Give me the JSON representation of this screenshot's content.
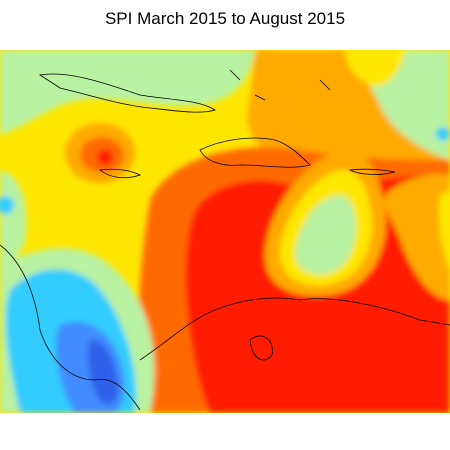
{
  "title": "SPI March 2015 to August 2015"
}
